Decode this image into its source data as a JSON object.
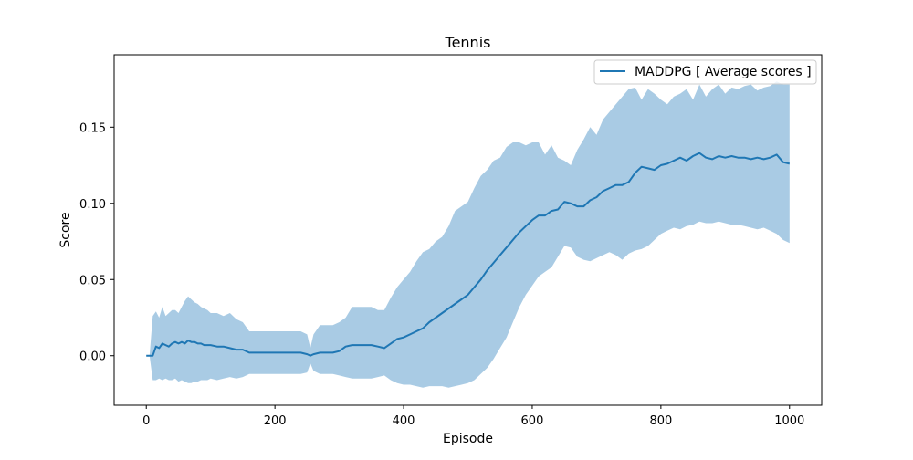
{
  "chart_data": {
    "type": "line",
    "title": "Tennis",
    "xlabel": "Episode",
    "ylabel": "Score",
    "xlim": [
      -50,
      1050
    ],
    "ylim": [
      -0.0325,
      0.1975
    ],
    "xticks": [
      0,
      200,
      400,
      600,
      800,
      1000
    ],
    "xtick_labels": [
      "0",
      "200",
      "400",
      "600",
      "800",
      "1000"
    ],
    "yticks": [
      0.0,
      0.05,
      0.1,
      0.15
    ],
    "ytick_labels": [
      "0.00",
      "0.05",
      "0.10",
      "0.15"
    ],
    "grid": false,
    "legend": {
      "position": "top-right",
      "entries": [
        "MADDPG [ Average scores ]"
      ]
    },
    "colors": {
      "line": "#1f77b4",
      "band": "#a9cbe4"
    },
    "series": [
      {
        "name": "MADDPG [ Average scores ]",
        "x": [
          0,
          5,
          10,
          15,
          20,
          25,
          30,
          35,
          40,
          45,
          50,
          55,
          60,
          65,
          70,
          75,
          80,
          85,
          90,
          95,
          100,
          110,
          120,
          130,
          140,
          150,
          160,
          170,
          180,
          190,
          200,
          210,
          220,
          230,
          240,
          250,
          255,
          260,
          270,
          280,
          290,
          300,
          310,
          320,
          330,
          340,
          350,
          360,
          370,
          380,
          390,
          400,
          410,
          420,
          430,
          440,
          450,
          460,
          470,
          480,
          490,
          500,
          510,
          520,
          530,
          540,
          550,
          560,
          570,
          580,
          590,
          600,
          610,
          620,
          630,
          640,
          650,
          660,
          670,
          680,
          690,
          700,
          710,
          720,
          730,
          740,
          750,
          760,
          770,
          780,
          790,
          800,
          810,
          820,
          830,
          840,
          850,
          860,
          870,
          880,
          890,
          900,
          910,
          920,
          930,
          940,
          950,
          960,
          970,
          980,
          990,
          1000
        ],
        "values": [
          0.0,
          0.0,
          0.0,
          0.006,
          0.005,
          0.008,
          0.007,
          0.006,
          0.008,
          0.009,
          0.008,
          0.009,
          0.008,
          0.01,
          0.009,
          0.009,
          0.008,
          0.008,
          0.007,
          0.007,
          0.007,
          0.006,
          0.006,
          0.005,
          0.004,
          0.004,
          0.002,
          0.002,
          0.002,
          0.002,
          0.002,
          0.002,
          0.002,
          0.002,
          0.002,
          0.001,
          0.0,
          0.001,
          0.002,
          0.002,
          0.002,
          0.003,
          0.006,
          0.007,
          0.007,
          0.007,
          0.007,
          0.006,
          0.005,
          0.008,
          0.011,
          0.012,
          0.014,
          0.016,
          0.018,
          0.022,
          0.025,
          0.028,
          0.031,
          0.034,
          0.037,
          0.04,
          0.045,
          0.05,
          0.056,
          0.061,
          0.066,
          0.071,
          0.076,
          0.081,
          0.085,
          0.089,
          0.092,
          0.092,
          0.095,
          0.096,
          0.101,
          0.1,
          0.098,
          0.098,
          0.102,
          0.104,
          0.108,
          0.11,
          0.112,
          0.112,
          0.114,
          0.12,
          0.124,
          0.123,
          0.122,
          0.125,
          0.126,
          0.128,
          0.13,
          0.128,
          0.131,
          0.133,
          0.13,
          0.129,
          0.131,
          0.13,
          0.131,
          0.13,
          0.13,
          0.129,
          0.13,
          0.129,
          0.13,
          0.132,
          0.127,
          0.126
        ],
        "upper": [
          0.0,
          0.0,
          0.026,
          0.029,
          0.025,
          0.032,
          0.026,
          0.028,
          0.03,
          0.03,
          0.028,
          0.032,
          0.036,
          0.039,
          0.037,
          0.035,
          0.034,
          0.032,
          0.031,
          0.03,
          0.028,
          0.028,
          0.026,
          0.028,
          0.024,
          0.022,
          0.016,
          0.016,
          0.016,
          0.016,
          0.016,
          0.016,
          0.016,
          0.016,
          0.016,
          0.014,
          0.005,
          0.014,
          0.02,
          0.02,
          0.02,
          0.022,
          0.025,
          0.032,
          0.032,
          0.032,
          0.032,
          0.03,
          0.03,
          0.038,
          0.045,
          0.05,
          0.055,
          0.062,
          0.068,
          0.07,
          0.075,
          0.078,
          0.085,
          0.095,
          0.098,
          0.101,
          0.11,
          0.118,
          0.122,
          0.128,
          0.13,
          0.137,
          0.14,
          0.14,
          0.138,
          0.14,
          0.14,
          0.132,
          0.138,
          0.13,
          0.128,
          0.125,
          0.135,
          0.142,
          0.15,
          0.145,
          0.155,
          0.16,
          0.165,
          0.17,
          0.175,
          0.176,
          0.168,
          0.175,
          0.172,
          0.168,
          0.165,
          0.17,
          0.172,
          0.175,
          0.168,
          0.178,
          0.17,
          0.175,
          0.178,
          0.172,
          0.176,
          0.175,
          0.177,
          0.178,
          0.174,
          0.176,
          0.177,
          0.18,
          0.178,
          0.178
        ],
        "lower": [
          0.0,
          0.0,
          -0.016,
          -0.016,
          -0.015,
          -0.016,
          -0.015,
          -0.016,
          -0.016,
          -0.015,
          -0.017,
          -0.016,
          -0.017,
          -0.018,
          -0.018,
          -0.017,
          -0.017,
          -0.016,
          -0.016,
          -0.016,
          -0.015,
          -0.016,
          -0.015,
          -0.014,
          -0.015,
          -0.014,
          -0.012,
          -0.012,
          -0.012,
          -0.012,
          -0.012,
          -0.012,
          -0.012,
          -0.012,
          -0.012,
          -0.011,
          -0.005,
          -0.01,
          -0.012,
          -0.012,
          -0.012,
          -0.013,
          -0.014,
          -0.015,
          -0.015,
          -0.015,
          -0.015,
          -0.014,
          -0.013,
          -0.016,
          -0.018,
          -0.019,
          -0.019,
          -0.02,
          -0.021,
          -0.02,
          -0.02,
          -0.02,
          -0.021,
          -0.02,
          -0.019,
          -0.018,
          -0.016,
          -0.012,
          -0.008,
          -0.002,
          0.005,
          0.012,
          0.022,
          0.032,
          0.04,
          0.046,
          0.052,
          0.055,
          0.058,
          0.065,
          0.072,
          0.071,
          0.065,
          0.063,
          0.062,
          0.064,
          0.066,
          0.068,
          0.066,
          0.063,
          0.067,
          0.069,
          0.07,
          0.072,
          0.076,
          0.08,
          0.082,
          0.084,
          0.083,
          0.085,
          0.086,
          0.088,
          0.087,
          0.087,
          0.088,
          0.087,
          0.086,
          0.086,
          0.085,
          0.084,
          0.083,
          0.084,
          0.082,
          0.08,
          0.076,
          0.074
        ]
      }
    ]
  }
}
